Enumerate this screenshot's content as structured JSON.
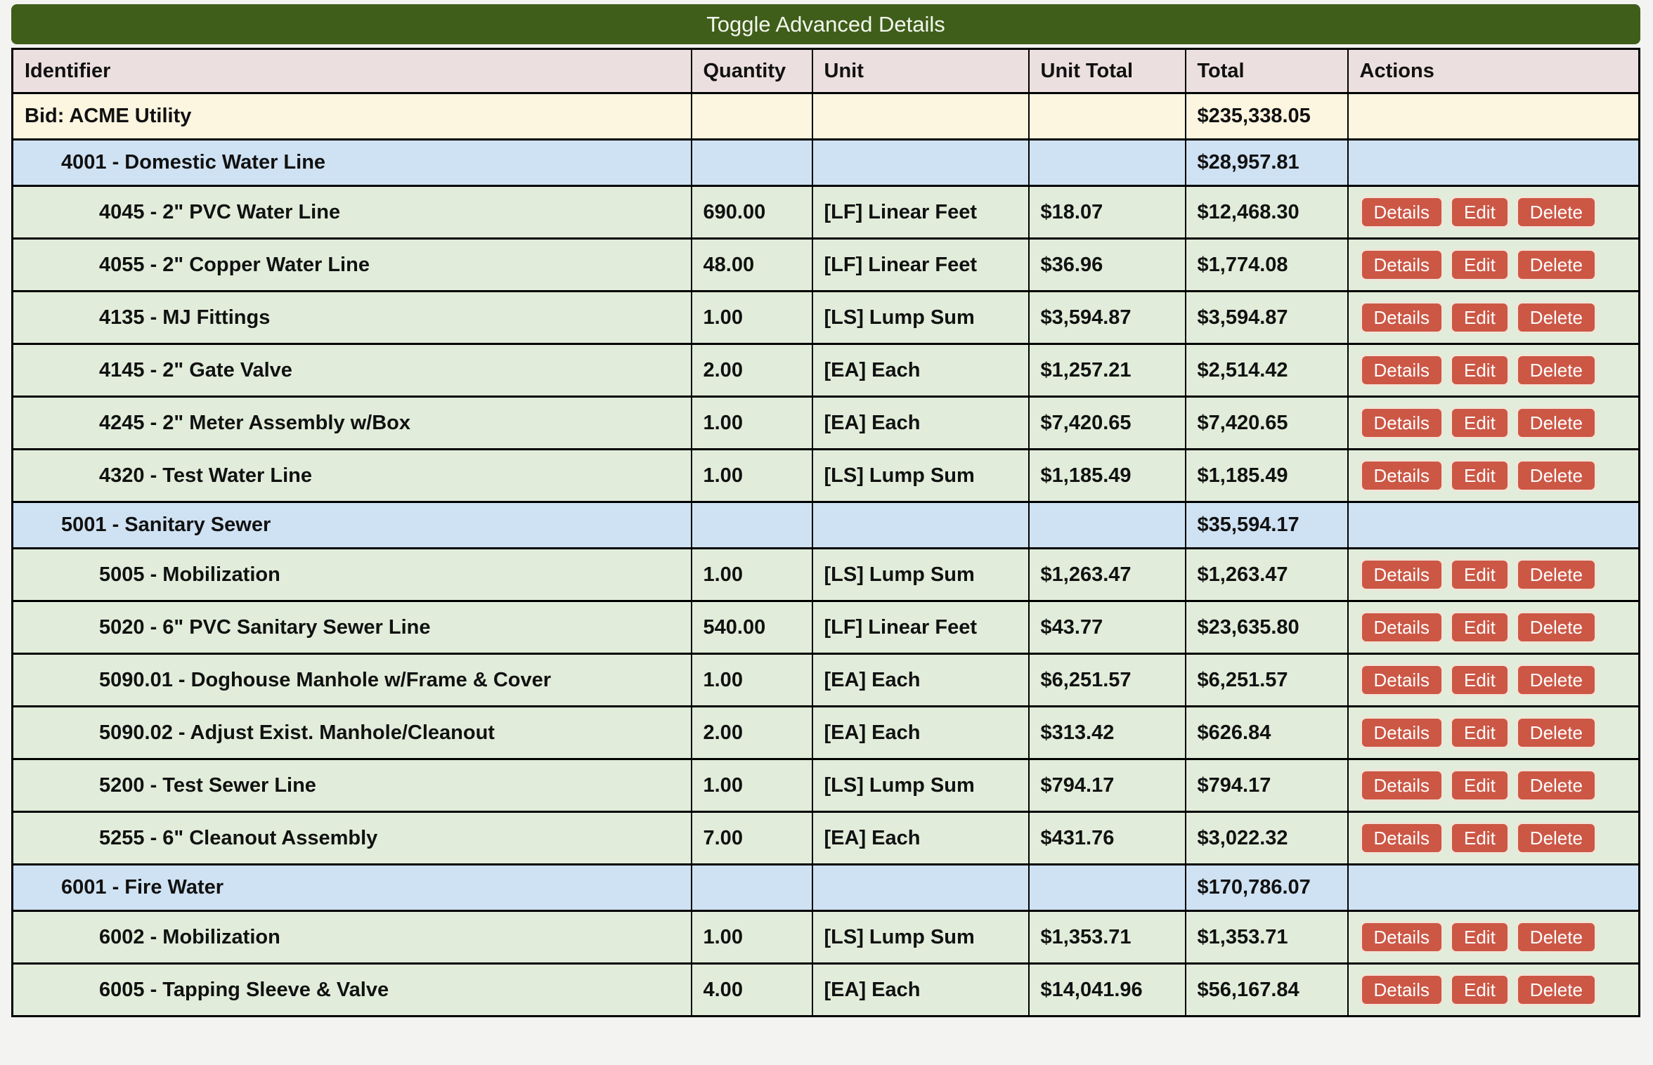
{
  "toggle_button": {
    "label": "Toggle Advanced Details"
  },
  "colors": {
    "toggle_bar_green": "#3f5e1a",
    "header_row_pink": "#ecdfdf",
    "bid_row_cream": "#fcf5e0",
    "group_row_blue": "#cfe2f3",
    "item_row_green": "#e1edda",
    "action_button_red": "#cc5745",
    "border_black": "#000000"
  },
  "table": {
    "headers": [
      "Identifier",
      "Quantity",
      "Unit",
      "Unit Total",
      "Total",
      "Actions"
    ],
    "action_buttons": [
      "Details",
      "Edit",
      "Delete"
    ],
    "rows": [
      {
        "type": "bid",
        "level": 0,
        "identifier": "Bid: ACME Utility",
        "quantity": "",
        "unit": "",
        "unit_total": "",
        "total": "$235,338.05",
        "has_actions": false
      },
      {
        "type": "group",
        "level": 1,
        "identifier": "4001 - Domestic Water Line",
        "quantity": "",
        "unit": "",
        "unit_total": "",
        "total": "$28,957.81",
        "has_actions": false
      },
      {
        "type": "item",
        "level": 2,
        "identifier": "4045 - 2\" PVC Water Line",
        "quantity": "690.00",
        "unit": "[LF] Linear Feet",
        "unit_total": "$18.07",
        "total": "$12,468.30",
        "has_actions": true
      },
      {
        "type": "item",
        "level": 2,
        "identifier": "4055 - 2\" Copper Water Line",
        "quantity": "48.00",
        "unit": "[LF] Linear Feet",
        "unit_total": "$36.96",
        "total": "$1,774.08",
        "has_actions": true
      },
      {
        "type": "item",
        "level": 2,
        "identifier": "4135 - MJ Fittings",
        "quantity": "1.00",
        "unit": "[LS] Lump Sum",
        "unit_total": "$3,594.87",
        "total": "$3,594.87",
        "has_actions": true
      },
      {
        "type": "item",
        "level": 2,
        "identifier": "4145 - 2\" Gate Valve",
        "quantity": "2.00",
        "unit": "[EA] Each",
        "unit_total": "$1,257.21",
        "total": "$2,514.42",
        "has_actions": true
      },
      {
        "type": "item",
        "level": 2,
        "identifier": "4245 - 2\" Meter Assembly w/Box",
        "quantity": "1.00",
        "unit": "[EA] Each",
        "unit_total": "$7,420.65",
        "total": "$7,420.65",
        "has_actions": true
      },
      {
        "type": "item",
        "level": 2,
        "identifier": "4320 - Test Water Line",
        "quantity": "1.00",
        "unit": "[LS] Lump Sum",
        "unit_total": "$1,185.49",
        "total": "$1,185.49",
        "has_actions": true
      },
      {
        "type": "group",
        "level": 1,
        "identifier": "5001 - Sanitary Sewer",
        "quantity": "",
        "unit": "",
        "unit_total": "",
        "total": "$35,594.17",
        "has_actions": false
      },
      {
        "type": "item",
        "level": 2,
        "identifier": "5005 - Mobilization",
        "quantity": "1.00",
        "unit": "[LS] Lump Sum",
        "unit_total": "$1,263.47",
        "total": "$1,263.47",
        "has_actions": true
      },
      {
        "type": "item",
        "level": 2,
        "identifier": "5020 - 6\" PVC Sanitary Sewer Line",
        "quantity": "540.00",
        "unit": "[LF] Linear Feet",
        "unit_total": "$43.77",
        "total": "$23,635.80",
        "has_actions": true
      },
      {
        "type": "item",
        "level": 2,
        "identifier": "5090.01 - Doghouse Manhole w/Frame & Cover",
        "quantity": "1.00",
        "unit": "[EA] Each",
        "unit_total": "$6,251.57",
        "total": "$6,251.57",
        "has_actions": true
      },
      {
        "type": "item",
        "level": 2,
        "identifier": "5090.02 - Adjust Exist. Manhole/Cleanout",
        "quantity": "2.00",
        "unit": "[EA] Each",
        "unit_total": "$313.42",
        "total": "$626.84",
        "has_actions": true
      },
      {
        "type": "item",
        "level": 2,
        "identifier": "5200 - Test Sewer Line",
        "quantity": "1.00",
        "unit": "[LS] Lump Sum",
        "unit_total": "$794.17",
        "total": "$794.17",
        "has_actions": true
      },
      {
        "type": "item",
        "level": 2,
        "identifier": "5255 - 6\" Cleanout Assembly",
        "quantity": "7.00",
        "unit": "[EA] Each",
        "unit_total": "$431.76",
        "total": "$3,022.32",
        "has_actions": true
      },
      {
        "type": "group",
        "level": 1,
        "identifier": "6001 - Fire Water",
        "quantity": "",
        "unit": "",
        "unit_total": "",
        "total": "$170,786.07",
        "has_actions": false
      },
      {
        "type": "item",
        "level": 2,
        "identifier": "6002 - Mobilization",
        "quantity": "1.00",
        "unit": "[LS] Lump Sum",
        "unit_total": "$1,353.71",
        "total": "$1,353.71",
        "has_actions": true
      },
      {
        "type": "item",
        "level": 2,
        "identifier": "6005 - Tapping Sleeve & Valve",
        "quantity": "4.00",
        "unit": "[EA] Each",
        "unit_total": "$14,041.96",
        "total": "$56,167.84",
        "has_actions": true
      }
    ]
  }
}
